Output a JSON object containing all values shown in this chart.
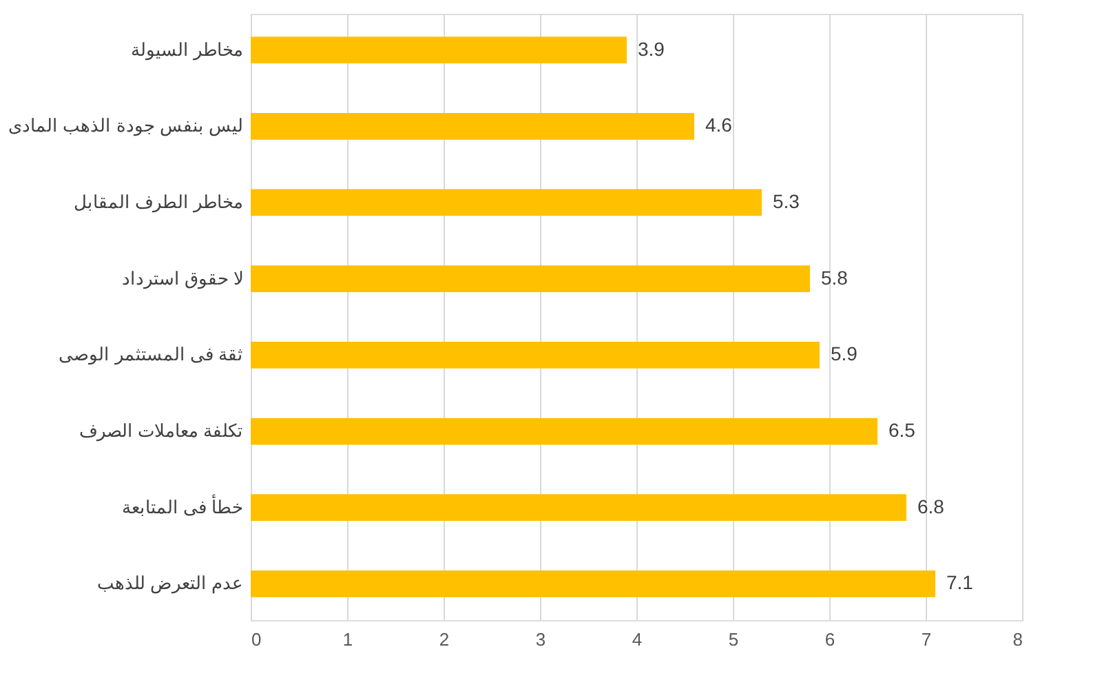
{
  "chart_data": {
    "type": "bar",
    "orientation": "horizontal",
    "categories": [
      "مخاطر السيولة",
      "ليس بنفس جودة الذهب المادى",
      "مخاطر الطرف المقابل",
      "لا حقوق استرداد",
      "ثقة فى المستثمر الوصى",
      "تكلفة معاملات الصرف",
      "خطأ فى المتابعة",
      "عدم التعرض للذهب"
    ],
    "values": [
      3.9,
      4.6,
      5.3,
      5.8,
      5.9,
      6.5,
      6.8,
      7.1
    ],
    "color": "#ffc000",
    "xlim": [
      0,
      8
    ],
    "xticks": [
      0,
      1,
      2,
      3,
      4,
      5,
      6,
      7,
      8
    ],
    "grid": "x",
    "data_labels": true
  }
}
